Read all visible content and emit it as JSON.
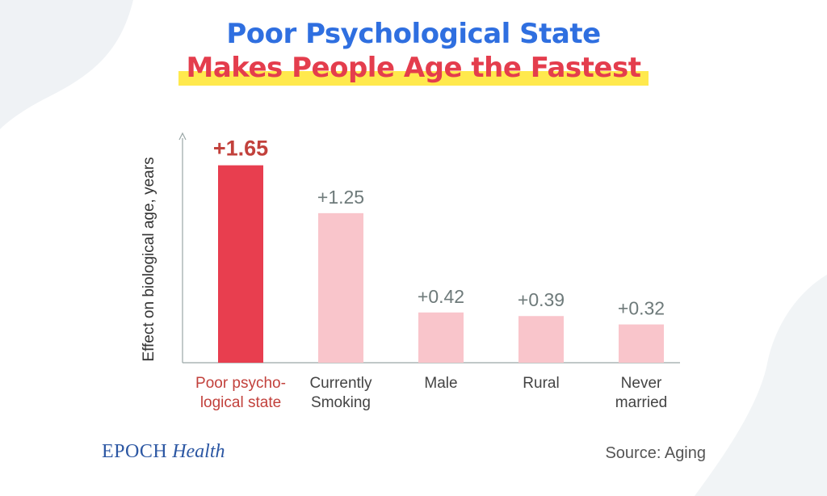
{
  "header": {
    "title_line1": "Poor Psychological State",
    "title_line2": "Makes People Age the Fastest"
  },
  "colors": {
    "title_blue": "#2f6fe0",
    "title_red": "#e43d4d",
    "highlight_yellow": "#ffe94d",
    "bar_highlight": "#e83e4f",
    "bar_normal": "#f9c5cb",
    "label_highlight": "#c2413c",
    "label_normal": "#6e7a7a",
    "category_normal": "#444444",
    "axis": "#9aa6a6"
  },
  "chart_data": {
    "type": "bar",
    "categories": [
      [
        "Poor psycho-",
        "logical state"
      ],
      [
        "Currently",
        "Smoking"
      ],
      [
        "Male"
      ],
      [
        "Rural"
      ],
      [
        "Never",
        "married"
      ]
    ],
    "values": [
      1.65,
      1.25,
      0.42,
      0.39,
      0.32
    ],
    "value_labels": [
      "+1.65",
      "+1.25",
      "+0.42",
      "+0.39",
      "+0.32"
    ],
    "highlight_index": 0,
    "title": "Poor Psychological State Makes People Age the Fastest",
    "xlabel": "",
    "ylabel": "Effect on biological age, years",
    "ylim": [
      0,
      1.85
    ],
    "grid": false,
    "legend": "none"
  },
  "footer": {
    "logo_brand": "EPOCH",
    "logo_sub": "Health",
    "source": "Source: Aging"
  }
}
